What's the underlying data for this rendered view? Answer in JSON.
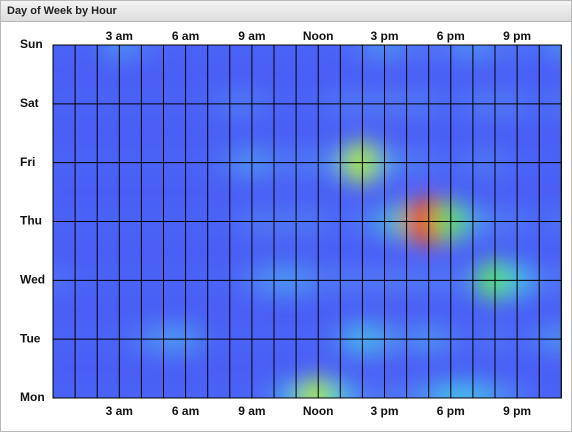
{
  "header": {
    "title": "Day of Week by Hour"
  },
  "chart_data": {
    "type": "heatmap",
    "categories": [
      "Mon",
      "Tue",
      "Wed",
      "Thu",
      "Fri",
      "Sat",
      "Sun"
    ],
    "xlim": [
      0,
      23
    ],
    "xticks": [
      {
        "value": 3,
        "label": "3 am"
      },
      {
        "value": 6,
        "label": "6 am"
      },
      {
        "value": 9,
        "label": "9 am"
      },
      {
        "value": 12,
        "label": "Noon"
      },
      {
        "value": 15,
        "label": "3 pm"
      },
      {
        "value": 18,
        "label": "6 pm"
      },
      {
        "value": 21,
        "label": "9 pm"
      }
    ],
    "clim": [
      0,
      10
    ],
    "colors": [
      "#4a5ef5",
      "#5a9cf7",
      "#45dbe6",
      "#5fe062",
      "#f2f026",
      "#f02a1e"
    ],
    "grid": true,
    "values": [
      [
        1,
        1,
        1,
        1,
        1,
        1,
        1,
        1,
        1,
        1,
        2,
        4,
        7,
        4,
        2,
        2,
        2,
        3,
        4,
        4,
        3,
        2,
        1,
        1
      ],
      [
        1,
        1,
        1,
        1,
        2,
        3,
        3,
        1,
        1,
        1,
        1,
        1,
        1,
        2,
        4,
        3,
        2,
        3,
        2,
        1,
        2,
        1,
        2,
        3
      ],
      [
        2,
        1,
        1,
        1,
        1,
        1,
        1,
        1,
        1,
        2,
        3,
        3,
        2,
        2,
        2,
        2,
        2,
        2,
        2,
        2,
        6,
        4,
        2,
        2
      ],
      [
        1,
        1,
        1,
        1,
        1,
        1,
        1,
        1,
        1,
        2,
        2,
        2,
        2,
        1,
        2,
        3,
        5,
        10,
        6,
        3,
        2,
        2,
        1,
        2
      ],
      [
        1,
        1,
        1,
        1,
        1,
        1,
        1,
        1,
        2,
        3,
        2,
        2,
        2,
        3,
        7,
        3,
        2,
        2,
        1,
        2,
        2,
        1,
        1,
        1
      ],
      [
        1,
        1,
        1,
        1,
        1,
        1,
        1,
        1,
        2,
        2,
        1,
        1,
        1,
        2,
        2,
        2,
        2,
        2,
        1,
        2,
        2,
        2,
        1,
        2
      ],
      [
        1,
        1,
        1,
        3,
        2,
        1,
        1,
        1,
        1,
        1,
        1,
        1,
        1,
        1,
        2,
        3,
        2,
        2,
        2,
        3,
        2,
        2,
        1,
        3
      ]
    ]
  }
}
